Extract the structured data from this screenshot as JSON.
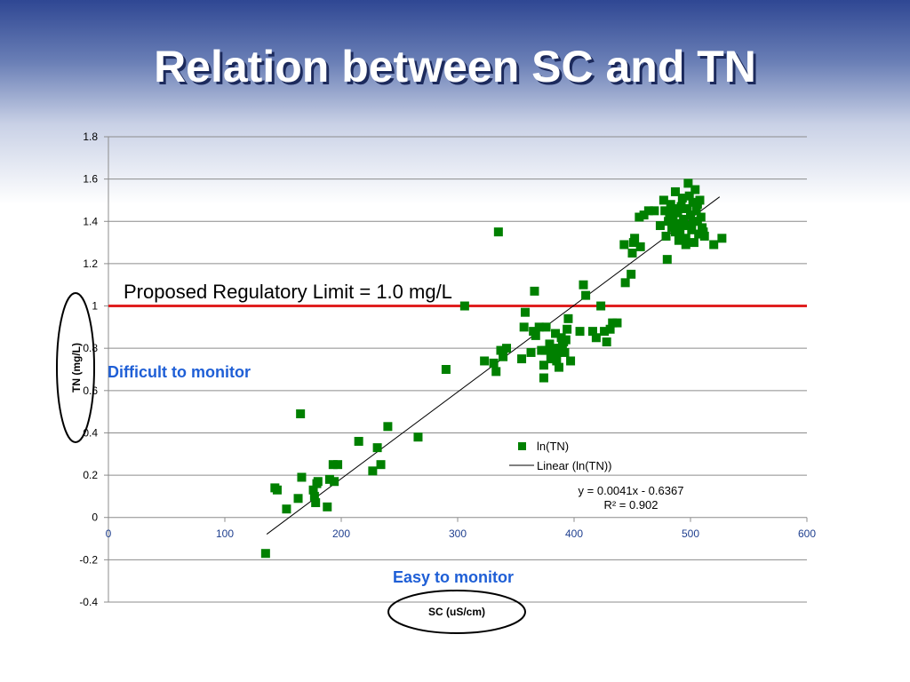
{
  "slide": {
    "title": "Relation between SC and TN"
  },
  "chart_data": {
    "type": "scatter",
    "title": "Relation between SC and TN",
    "xlabel": "SC (uS/cm)",
    "ylabel": "TN (mg/L)",
    "xlim": [
      0,
      600
    ],
    "ylim": [
      -0.4,
      1.8
    ],
    "xticks": [
      "0",
      "100",
      "200",
      "300",
      "400",
      "500",
      "600"
    ],
    "yticks": [
      "-0.4",
      "-0.2",
      "0",
      "0.2",
      "0.4",
      "0.6",
      "0.8",
      "1",
      "1.2",
      "1.4",
      "1.6",
      "1.8"
    ],
    "grid": true,
    "series": [
      {
        "name": "ln(TN)",
        "color": "#008000",
        "points": [
          [
            135,
            -0.17
          ],
          [
            143,
            0.14
          ],
          [
            145,
            0.13
          ],
          [
            153,
            0.04
          ],
          [
            163,
            0.09
          ],
          [
            165,
            0.49
          ],
          [
            166,
            0.19
          ],
          [
            176,
            0.13
          ],
          [
            177,
            0.1
          ],
          [
            178,
            0.07
          ],
          [
            179,
            0.16
          ],
          [
            180,
            0.17
          ],
          [
            188,
            0.05
          ],
          [
            190,
            0.18
          ],
          [
            193,
            0.25
          ],
          [
            194,
            0.17
          ],
          [
            197,
            0.25
          ],
          [
            215,
            0.36
          ],
          [
            227,
            0.22
          ],
          [
            231,
            0.33
          ],
          [
            234,
            0.25
          ],
          [
            240,
            0.43
          ],
          [
            266,
            0.38
          ],
          [
            290,
            0.7
          ],
          [
            306,
            1.0
          ],
          [
            323,
            0.74
          ],
          [
            331,
            0.73
          ],
          [
            333,
            0.69
          ],
          [
            335,
            1.35
          ],
          [
            337,
            0.79
          ],
          [
            339,
            0.76
          ],
          [
            342,
            0.8
          ],
          [
            355,
            0.75
          ],
          [
            357,
            0.9
          ],
          [
            358,
            0.97
          ],
          [
            363,
            0.78
          ],
          [
            365,
            0.88
          ],
          [
            366,
            1.07
          ],
          [
            367,
            0.86
          ],
          [
            370,
            0.9
          ],
          [
            372,
            0.79
          ],
          [
            374,
            0.66
          ],
          [
            374,
            0.72
          ],
          [
            375,
            0.79
          ],
          [
            376,
            0.9
          ],
          [
            379,
            0.82
          ],
          [
            380,
            0.75
          ],
          [
            381,
            0.79
          ],
          [
            382,
            0.77
          ],
          [
            383,
            0.8
          ],
          [
            384,
            0.87
          ],
          [
            385,
            0.74
          ],
          [
            386,
            0.78
          ],
          [
            387,
            0.71
          ],
          [
            388,
            0.8
          ],
          [
            389,
            0.85
          ],
          [
            390,
            0.81
          ],
          [
            391,
            0.83
          ],
          [
            392,
            0.78
          ],
          [
            393,
            0.84
          ],
          [
            394,
            0.89
          ],
          [
            395,
            0.94
          ],
          [
            397,
            0.74
          ],
          [
            405,
            0.88
          ],
          [
            408,
            1.1
          ],
          [
            410,
            1.05
          ],
          [
            416,
            0.88
          ],
          [
            419,
            0.85
          ],
          [
            423,
            1.0
          ],
          [
            426,
            0.88
          ],
          [
            428,
            0.83
          ],
          [
            431,
            0.89
          ],
          [
            433,
            0.92
          ],
          [
            437,
            0.92
          ],
          [
            443,
            1.29
          ],
          [
            444,
            1.11
          ],
          [
            449,
            1.15
          ],
          [
            450,
            1.25
          ],
          [
            451,
            1.3
          ],
          [
            452,
            1.32
          ],
          [
            456,
            1.42
          ],
          [
            457,
            1.28
          ],
          [
            460,
            1.43
          ],
          [
            464,
            1.45
          ],
          [
            469,
            1.45
          ],
          [
            474,
            1.38
          ],
          [
            477,
            1.5
          ],
          [
            478,
            1.45
          ],
          [
            479,
            1.33
          ],
          [
            480,
            1.22
          ],
          [
            481,
            1.4
          ],
          [
            482,
            1.44
          ],
          [
            483,
            1.48
          ],
          [
            484,
            1.37
          ],
          [
            485,
            1.42
          ],
          [
            486,
            1.46
          ],
          [
            487,
            1.54
          ],
          [
            488,
            1.39
          ],
          [
            489,
            1.44
          ],
          [
            490,
            1.31
          ],
          [
            491,
            1.35
          ],
          [
            492,
            1.47
          ],
          [
            493,
            1.51
          ],
          [
            494,
            1.41
          ],
          [
            495,
            1.38
          ],
          [
            496,
            1.29
          ],
          [
            497,
            1.46
          ],
          [
            498,
            1.58
          ],
          [
            499,
            1.52
          ],
          [
            500,
            1.43
          ],
          [
            501,
            1.36
          ],
          [
            502,
            1.49
          ],
          [
            503,
            1.3
          ],
          [
            504,
            1.55
          ],
          [
            505,
            1.45
          ],
          [
            506,
            1.4
          ],
          [
            507,
            1.34
          ],
          [
            508,
            1.5
          ],
          [
            509,
            1.42
          ],
          [
            510,
            1.37
          ],
          [
            511,
            1.35
          ],
          [
            512,
            1.33
          ],
          [
            520,
            1.29
          ],
          [
            527,
            1.32
          ],
          [
            496,
            1.32
          ],
          [
            502,
            1.4
          ],
          [
            493,
            1.46
          ],
          [
            487,
            1.35
          ],
          [
            506,
            1.48
          ],
          [
            499,
            1.38
          ]
        ]
      }
    ],
    "trendline": {
      "name": "Linear (ln(TN))",
      "slope": 0.0041,
      "intercept": -0.6367,
      "x_range": [
        136,
        525
      ],
      "equation": "y = 0.0041x - 0.6367",
      "r_squared": "R² = 0.902"
    },
    "reference_line": {
      "value": 1.0,
      "color": "#e02020",
      "label": "Proposed Regulatory Limit = 1.0 mg/L"
    },
    "annotations": {
      "difficult": "Difficult to monitor",
      "easy": "Easy to monitor"
    },
    "legend": {
      "marker_label": "ln(TN)",
      "line_label": "Linear (ln(TN))"
    }
  }
}
